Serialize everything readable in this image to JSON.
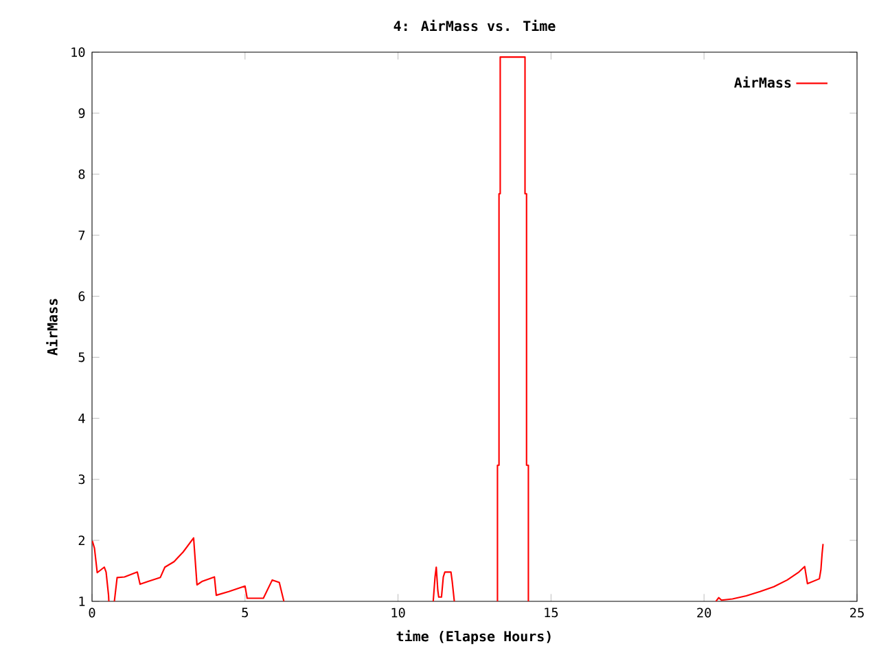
{
  "chart_data": {
    "type": "line",
    "title": "4: AirMass vs. Time",
    "xlabel": "time (Elapse Hours)",
    "ylabel": "AirMass",
    "xlim": [
      0,
      25
    ],
    "ylim": [
      1,
      10
    ],
    "xticks": [
      0,
      5,
      10,
      15,
      20,
      25
    ],
    "yticks": [
      1,
      2,
      3,
      4,
      5,
      6,
      7,
      8,
      9,
      10
    ],
    "legend": "top right",
    "grid": false,
    "marker": "none",
    "line_style": "solid",
    "series": [
      {
        "name": "AirMass",
        "color": "#ff0000",
        "x": [
          0.01,
          0.08,
          0.17,
          0.4,
          0.46,
          0.54,
          0.55,
          0.64,
          0.73,
          0.82,
          1.06,
          1.48,
          1.57,
          1.85,
          2.23,
          2.38,
          2.68,
          2.98,
          3.32,
          3.43,
          3.61,
          4.0,
          4.06,
          4.47,
          5.0,
          5.07,
          5.6,
          5.89,
          6.12,
          6.27,
          8.7,
          11.15,
          11.21,
          11.25,
          11.3,
          11.33,
          11.42,
          11.48,
          11.53,
          11.73,
          11.77,
          11.84,
          12.5,
          13.25,
          13.25,
          13.3,
          13.3,
          13.34,
          13.34,
          14.15,
          14.15,
          14.2,
          14.2,
          14.26,
          14.26,
          17.0,
          20.39,
          20.48,
          20.57,
          20.93,
          21.38,
          21.83,
          22.28,
          22.72,
          23.1,
          23.29,
          23.38,
          23.77,
          23.82,
          23.86,
          23.89
        ],
        "values": [
          1.99,
          1.87,
          1.47,
          1.56,
          1.48,
          1.1,
          1.0,
          null,
          1.0,
          1.39,
          1.4,
          1.48,
          1.28,
          1.33,
          1.39,
          1.56,
          1.65,
          1.81,
          2.04,
          1.27,
          1.33,
          1.4,
          1.1,
          1.16,
          1.25,
          1.05,
          1.05,
          1.35,
          1.31,
          1.0,
          null,
          1.0,
          1.4,
          1.56,
          1.18,
          1.07,
          1.07,
          1.4,
          1.48,
          1.48,
          1.33,
          1.0,
          null,
          1.0,
          3.23,
          3.23,
          7.68,
          7.68,
          9.92,
          9.92,
          7.68,
          7.68,
          3.23,
          3.23,
          1.0,
          null,
          1.0,
          1.06,
          1.02,
          1.04,
          1.09,
          1.16,
          1.24,
          1.35,
          1.48,
          1.57,
          1.29,
          1.37,
          1.52,
          1.79,
          1.94
        ]
      }
    ]
  }
}
